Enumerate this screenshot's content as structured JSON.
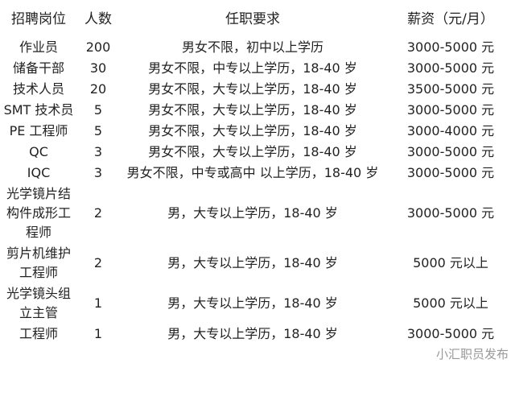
{
  "header": {
    "position": "招聘岗位",
    "count": "人数",
    "requirements": "任职要求",
    "salary": "薪资（元/月）"
  },
  "rows": [
    {
      "position": "作业员",
      "count": "200",
      "requirements": "男女不限，初中以上学历",
      "salary": "3000-5000 元"
    },
    {
      "position": "储备干部",
      "count": "30",
      "requirements": "男女不限，中专以上学历，18-40 岁",
      "salary": "3000-5000 元"
    },
    {
      "position": "技术人员",
      "count": "20",
      "requirements": "男女不限，大专以上学历，18-40 岁",
      "salary": "3500-5000 元"
    },
    {
      "position": "SMT 技术员",
      "count": "5",
      "requirements": "男女不限，大专以上学历，18-40 岁",
      "salary": "3000-5000 元"
    },
    {
      "position": "PE 工程师",
      "count": "5",
      "requirements": "男女不限，大专以上学历，18-40 岁",
      "salary": "3000-4000 元"
    },
    {
      "position": "QC",
      "count": "3",
      "requirements": "男女不限，大专以上学历，18-40 岁",
      "salary": "3000-5000 元"
    },
    {
      "position": "IQC",
      "count": "3",
      "requirements": "男女不限，中专或高中 以上学历，18-40 岁",
      "salary": "3000-5000 元"
    },
    {
      "position": "光学镜片结构件成形工程师",
      "count": "2",
      "requirements": "男，大专以上学历，18-40 岁",
      "salary": "3000-5000 元"
    },
    {
      "position": "剪片机维护工程师",
      "count": "2",
      "requirements": "男，大专以上学历，18-40 岁",
      "salary": "5000 元以上"
    },
    {
      "position": "光学镜头组立主管",
      "count": "1",
      "requirements": "男，大专以上学历，18-40 岁",
      "salary": "5000 元以上"
    },
    {
      "position": "工程师",
      "count": "1",
      "requirements": "男，大专以上学历，18-40 岁",
      "salary": "3000-5000 元"
    }
  ],
  "watermark": "小汇职员发布"
}
